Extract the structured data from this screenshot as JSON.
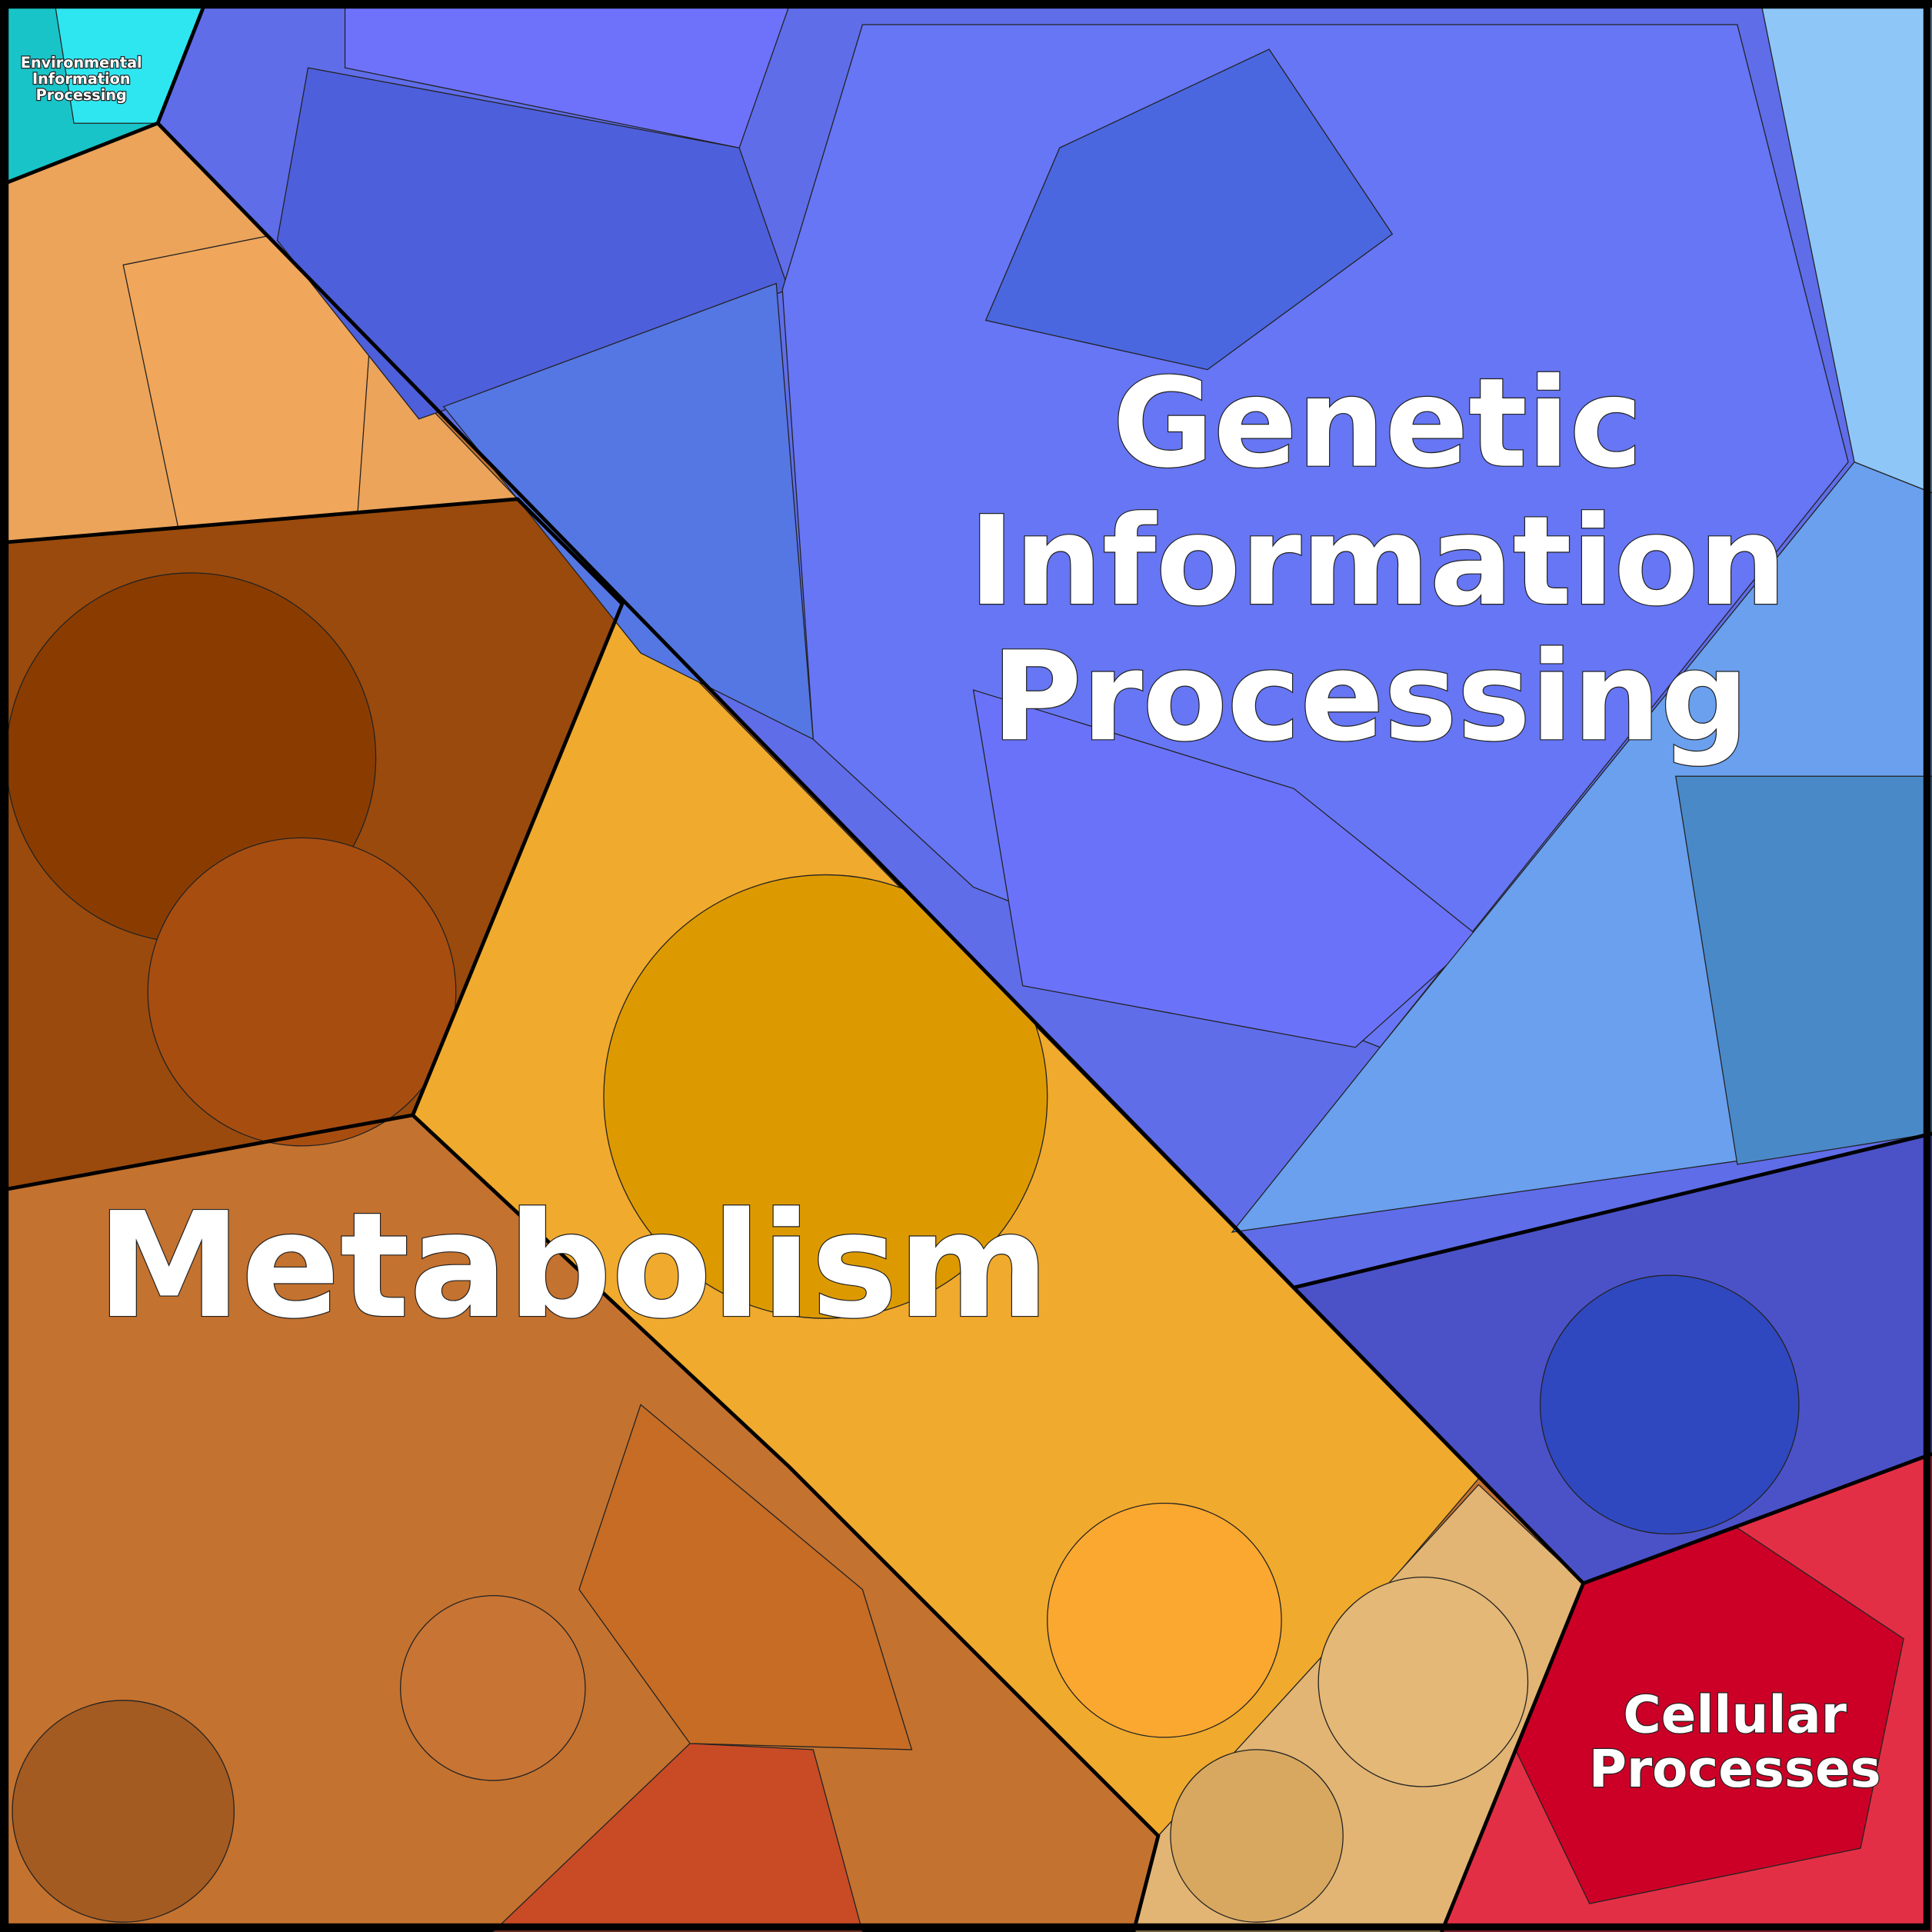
{
  "regions": [
    {
      "label_lines": [
        "Genetic",
        "Information",
        "Processing"
      ]
    },
    {
      "label_lines": [
        "Metabolism"
      ]
    },
    {
      "label_lines": [
        "Cellular",
        "Processes"
      ]
    },
    {
      "label_lines": [
        "Environmental",
        "Information",
        "Processing"
      ]
    }
  ]
}
